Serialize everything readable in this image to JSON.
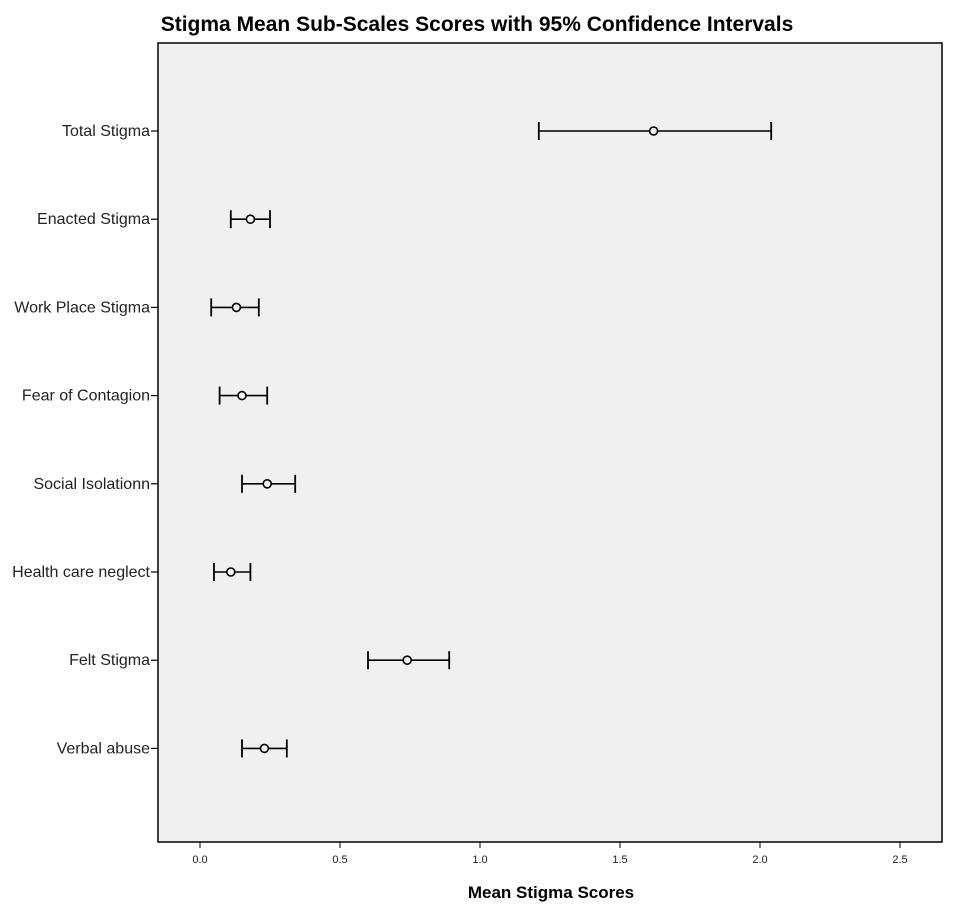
{
  "chart_data": {
    "type": "scatter",
    "title": "Stigma Mean Sub-Scales Scores with 95% Confidence Intervals",
    "xlabel": "Mean Stigma Scores",
    "ylabel": "",
    "xlim": [
      -0.15,
      2.65
    ],
    "xticks": [
      0.0,
      0.5,
      1.0,
      1.5,
      2.0,
      2.5
    ],
    "xtick_labels": [
      "0.0",
      "0.5",
      "1.0",
      "1.5",
      "2.0",
      "2.5"
    ],
    "grid": false,
    "categories": [
      "Total Stigma",
      "Enacted Stigma",
      "Work Place Stigma",
      "Fear of Contagion",
      "Social Isolationn",
      "Health care neglect",
      "Felt Stigma",
      "Verbal abuse"
    ],
    "series": [
      {
        "mean": [
          1.62,
          0.18,
          0.13,
          0.15,
          0.24,
          0.11,
          0.74,
          0.23
        ],
        "ci_lower": [
          1.21,
          0.11,
          0.04,
          0.07,
          0.15,
          0.05,
          0.6,
          0.15
        ],
        "ci_upper": [
          2.04,
          0.25,
          0.21,
          0.24,
          0.34,
          0.18,
          0.89,
          0.31
        ]
      }
    ],
    "colors": {
      "plot_background": "#f0f0f0",
      "axis": "#000000",
      "marker": "#000000"
    }
  }
}
